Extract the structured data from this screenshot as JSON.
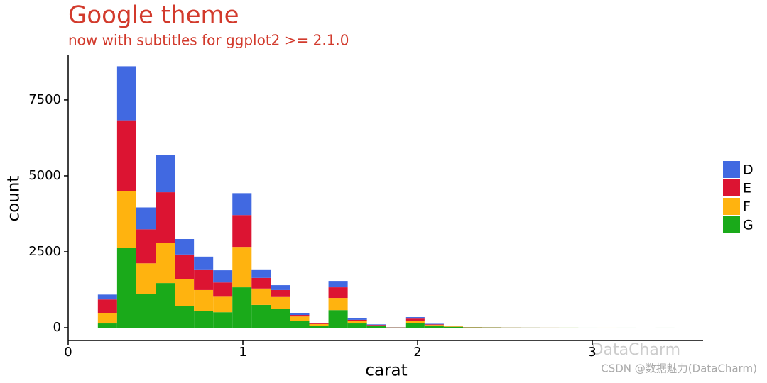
{
  "chart_data": {
    "type": "histogram",
    "title": "Google theme",
    "subtitle": "now with subtitles for ggplot2 >= 2.1.0",
    "x_label": "carat",
    "y_label": "count",
    "bins": [
      0.17,
      0.28,
      0.39,
      0.5,
      0.61,
      0.72,
      0.83,
      0.94,
      1.05,
      1.16,
      1.27,
      1.38,
      1.49,
      1.6,
      1.71,
      1.82,
      1.93,
      2.04,
      2.15,
      2.26,
      2.37,
      2.48,
      2.59,
      2.7,
      2.81,
      2.92,
      3.03,
      3.14,
      3.25,
      3.36,
      3.47
    ],
    "stacked": true,
    "series": [
      {
        "name": "G",
        "color": "#1aaa1a",
        "values": [
          140,
          2620,
          1120,
          1470,
          720,
          560,
          510,
          1330,
          750,
          610,
          230,
          70,
          580,
          140,
          50,
          5,
          160,
          70,
          30,
          10,
          8,
          5,
          3,
          2,
          2,
          1,
          0,
          1,
          0,
          1
        ]
      },
      {
        "name": "F",
        "color": "#ffb30f",
        "values": [
          350,
          1870,
          1000,
          1330,
          870,
          680,
          510,
          1330,
          540,
          400,
          140,
          50,
          400,
          70,
          20,
          5,
          70,
          20,
          15,
          5,
          5,
          3,
          2,
          1,
          1,
          0,
          1,
          0,
          0,
          0
        ]
      },
      {
        "name": "E",
        "color": "#dc1432",
        "values": [
          440,
          2340,
          1120,
          1660,
          820,
          680,
          470,
          1050,
          350,
          230,
          50,
          20,
          350,
          50,
          20,
          5,
          70,
          20,
          10,
          5,
          3,
          2,
          1,
          1,
          0,
          0,
          0,
          0,
          0,
          0
        ]
      },
      {
        "name": "D",
        "color": "#4169e1",
        "values": [
          160,
          1780,
          720,
          1220,
          510,
          420,
          400,
          720,
          280,
          160,
          50,
          20,
          210,
          50,
          20,
          5,
          50,
          20,
          5,
          0,
          2,
          1,
          1,
          0,
          0,
          0,
          0,
          0,
          0,
          0
        ]
      }
    ],
    "xlim": [
      0,
      3.634
    ],
    "ylim": [
      -420,
      8970
    ],
    "xticks": [
      0,
      1,
      2,
      3
    ],
    "yticks": [
      0,
      2500,
      5000,
      7500
    ],
    "grid": false,
    "legend_position": "right"
  },
  "watermarks": [
    "DataCharm",
    "CSDN @数据魅力(DataCharm)"
  ]
}
